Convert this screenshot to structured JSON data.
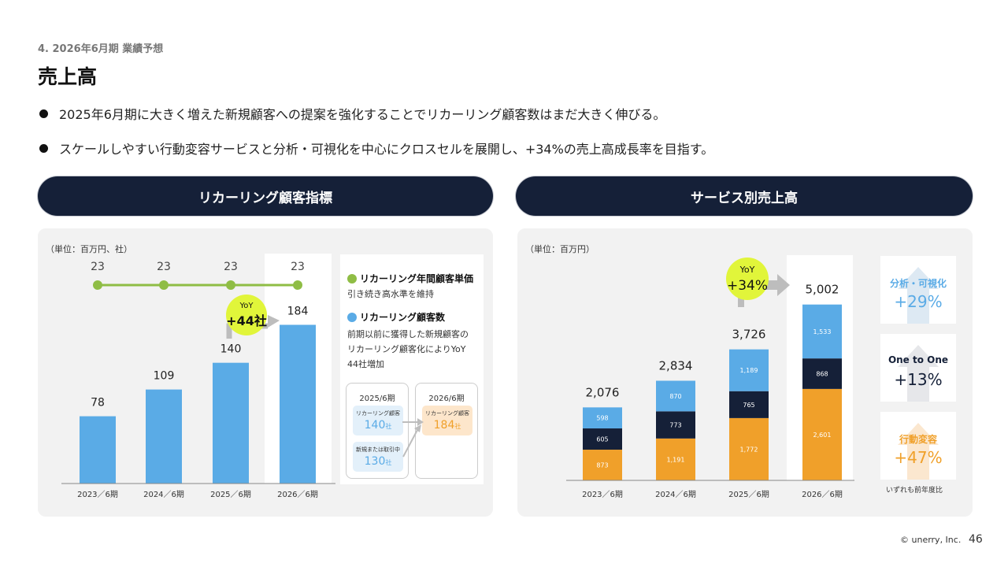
{
  "header": {
    "section": "4. 2026年6月期 業績予想",
    "title": "売上高"
  },
  "bullets": [
    "2025年6月期に大きく増えた新規顧客への提案を強化することでリカーリング顧客数はまだ大きく伸びる。",
    "スケールしやすい行動変容サービスと分析・可視化を中心にクロスセルを展開し、+34%の売上高成長率を目指す。"
  ],
  "left_panel": {
    "pill_title": "リカーリング顧客指標",
    "unit": "（単位：百万円、社）",
    "yoy_label": "YoY",
    "yoy_value": "+44社",
    "legend": {
      "price_title": "リカーリング年間顧客単価",
      "price_text": "引き続き高水準を維持",
      "count_title": "リカーリング顧客数",
      "count_lines": [
        "前期以前に獲得した新規顧客の",
        "リカーリング顧客化によりYoY",
        "44社増加"
      ]
    },
    "flow": {
      "from_period": "2025/6期",
      "to_period": "2026/6期",
      "recurring_label": "リカーリング顧客",
      "recurring_from": "140",
      "recurring_to": "184",
      "new_label": "新規または取引中",
      "new_value": "130",
      "unit": "社"
    }
  },
  "right_panel": {
    "pill_title": "サービス別売上高",
    "unit": "（単位：百万円）",
    "yoy_label": "YoY",
    "yoy_value": "+34%",
    "growth": [
      {
        "label": "分析・可視化",
        "value": "+29%"
      },
      {
        "label": "One to One",
        "value": "+13%"
      },
      {
        "label": "行動変容",
        "value": "+47%"
      }
    ],
    "growth_note": "いずれも前年度比"
  },
  "chart_data": [
    {
      "type": "bar",
      "categories": [
        "2023／6期",
        "2024／6期",
        "2025／6期",
        "2026／6期"
      ],
      "series": [
        {
          "name": "リカーリング顧客数",
          "values": [
            78,
            109,
            140,
            184
          ]
        },
        {
          "name": "リカーリング年間顧客単価",
          "values": [
            23,
            23,
            23,
            23
          ]
        }
      ],
      "ylim": [
        0,
        210
      ],
      "colors": {
        "bar": "#5aabe6",
        "line": "#8fbd45"
      }
    },
    {
      "type": "bar",
      "stacked": true,
      "categories": [
        "2023／6期",
        "2024／6期",
        "2025／6期",
        "2026／6期"
      ],
      "series": [
        {
          "values": [
            873,
            1191,
            1772,
            2601
          ],
          "color": "#f0a02a"
        },
        {
          "values": [
            605,
            773,
            765,
            868
          ],
          "color": "#152038"
        },
        {
          "values": [
            598,
            870,
            1189,
            1533
          ],
          "color": "#5aabe6"
        }
      ],
      "totals": [
        "2,076",
        "2,834",
        "3,726",
        "5,002"
      ],
      "segment_labels": [
        [
          "873",
          "605",
          "598"
        ],
        [
          "1,191",
          "773",
          "870"
        ],
        [
          "1,772",
          "765",
          "1,189"
        ],
        [
          "2,601",
          "868",
          "1,533"
        ]
      ],
      "ylim": [
        0,
        5600
      ]
    }
  ],
  "footer": {
    "copyright": "© unerry, Inc.",
    "page": "46"
  }
}
